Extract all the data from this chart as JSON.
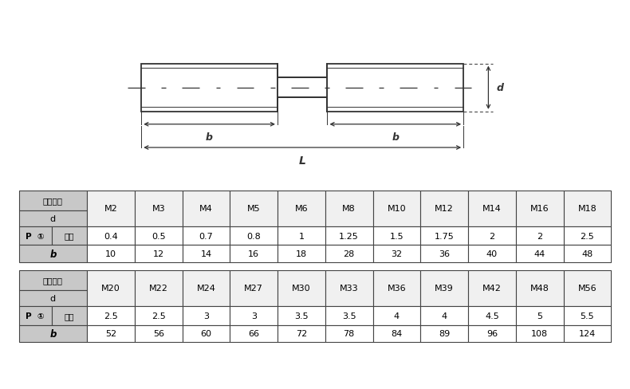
{
  "table1_col_headers": [
    "M2",
    "M3",
    "M4",
    "M5",
    "M6",
    "M8",
    "M10",
    "M12",
    "M14",
    "M16",
    "M18"
  ],
  "table1_row_P": [
    "0.4",
    "0.5",
    "0.7",
    "0.8",
    "1",
    "1.25",
    "1.5",
    "1.75",
    "2",
    "2",
    "2.5"
  ],
  "table1_row_b": [
    "10",
    "12",
    "14",
    "16",
    "18",
    "28",
    "32",
    "36",
    "40",
    "44",
    "48"
  ],
  "table2_col_headers": [
    "M20",
    "M22",
    "M24",
    "M27",
    "M30",
    "M33",
    "M36",
    "M39",
    "M42",
    "M48",
    "M56"
  ],
  "table2_row_P": [
    "2.5",
    "2.5",
    "3",
    "3",
    "3.5",
    "3.5",
    "4",
    "4",
    "4.5",
    "5",
    "5.5"
  ],
  "table2_row_b": [
    "52",
    "56",
    "60",
    "66",
    "72",
    "78",
    "84",
    "89",
    "96",
    "108",
    "124"
  ],
  "bg_color": "#ffffff",
  "header_bg": "#c8c8c8",
  "cell_bg": "#f0f0f0",
  "border_color": "#444444",
  "text_color": "#000000",
  "lc": "#333333"
}
